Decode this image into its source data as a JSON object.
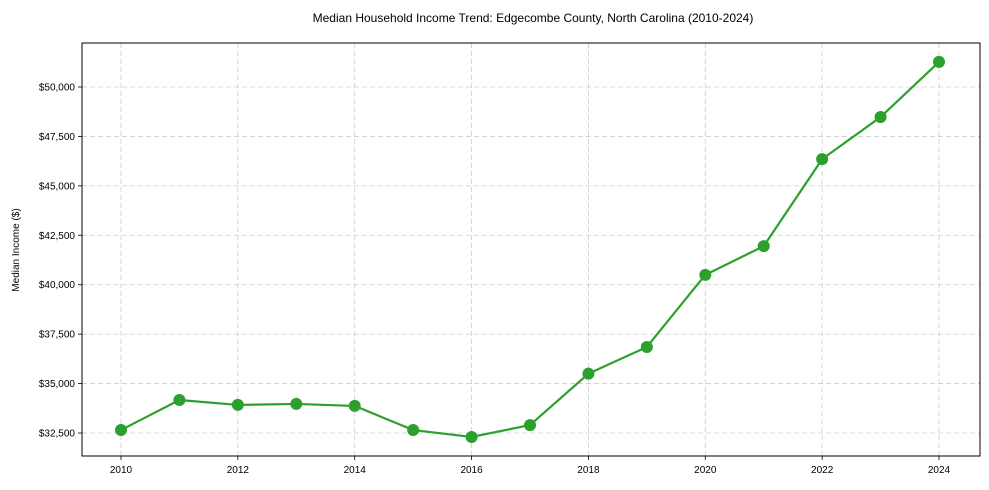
{
  "chart_data": {
    "type": "line",
    "title": "Median Household Income Trend: Edgecombe County, North Carolina (2010-2024)",
    "xlabel": "",
    "ylabel": "Median Income ($)",
    "x": [
      2010,
      2011,
      2012,
      2013,
      2014,
      2015,
      2016,
      2017,
      2018,
      2019,
      2020,
      2021,
      2022,
      2023,
      2024
    ],
    "series": [
      {
        "name": "Median Household Income",
        "color": "#2ca02c",
        "marker": "circle",
        "values": [
          32650,
          34170,
          33920,
          33970,
          33870,
          32650,
          32300,
          32900,
          35500,
          36850,
          40500,
          41950,
          46350,
          48480,
          51270
        ]
      }
    ],
    "x_ticks": [
      "2010",
      "2012",
      "2014",
      "2016",
      "2018",
      "2020",
      "2022",
      "2024"
    ],
    "y_ticks": [
      "$32,500",
      "$35,000",
      "$37,500",
      "$40,000",
      "$42,500",
      "$45,000",
      "$47,500",
      "$50,000"
    ],
    "xlim": [
      2009.3,
      2024.7
    ],
    "ylim": [
      31400,
      52300
    ],
    "grid": true,
    "legend": null
  }
}
